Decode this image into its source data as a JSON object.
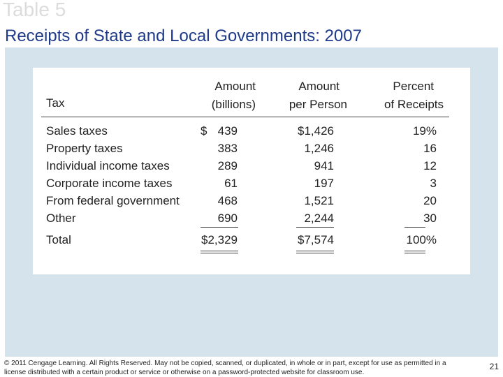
{
  "slide": {
    "label": "Table 5",
    "title": "Receipts of State and Local Governments: 2007",
    "page_number": "21"
  },
  "table": {
    "headers": {
      "tax": "Tax",
      "amount_line1": "Amount",
      "amount_line2": "(billions)",
      "per_person_line1": "Amount",
      "per_person_line2": "per Person",
      "percent_line1": "Percent",
      "percent_line2": "of Receipts"
    },
    "rows": [
      {
        "name": "Sales taxes",
        "currency": "$",
        "amount": "439",
        "per_person": "$1,426",
        "percent": "19%"
      },
      {
        "name": "Property taxes",
        "currency": "",
        "amount": "383",
        "per_person": "1,246",
        "percent": "16"
      },
      {
        "name": "Individual income taxes",
        "currency": "",
        "amount": "289",
        "per_person": "941",
        "percent": "12"
      },
      {
        "name": "Corporate income taxes",
        "currency": "",
        "amount": "61",
        "per_person": "197",
        "percent": "3"
      },
      {
        "name": "From federal government",
        "currency": "",
        "amount": "468",
        "per_person": "1,521",
        "percent": "20"
      },
      {
        "name": "Other",
        "currency": "",
        "amount": "690",
        "per_person": "2,244",
        "percent": "30"
      }
    ],
    "total": {
      "name": "Total",
      "amount": "$2,329",
      "per_person": "$7,574",
      "percent": "100%"
    }
  },
  "footer": {
    "copyright": "© 2011 Cengage Learning. All Rights Reserved. May not be copied, scanned, or duplicated, in whole or in part, except for use as permitted in a license distributed with a certain product or service or otherwise on a password-protected website for classroom use."
  }
}
